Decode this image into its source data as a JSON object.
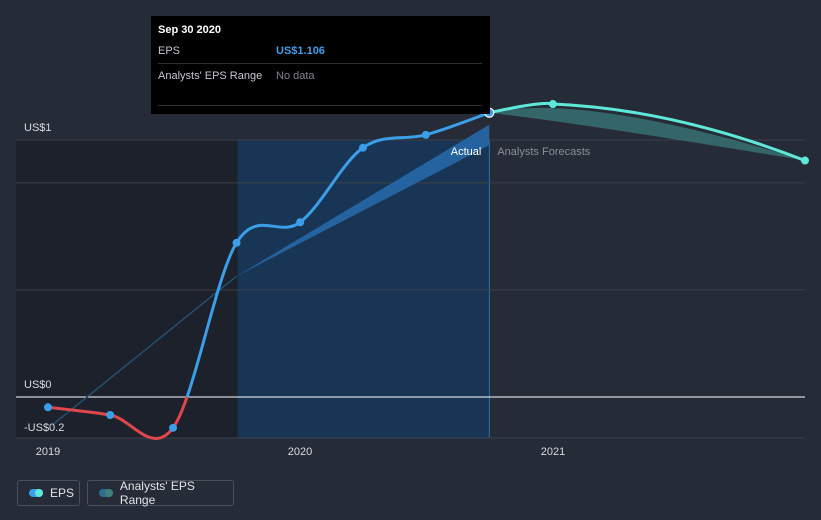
{
  "tooltip": {
    "date": "Sep 30 2020",
    "eps_label": "EPS",
    "eps_value": "US$1.106",
    "range_label": "Analysts' EPS Range",
    "range_value": "No data"
  },
  "legend": {
    "eps": "EPS",
    "range": "Analysts' EPS Range"
  },
  "colors": {
    "actual_positive": "#3b9ee8",
    "actual_negative": "#e0474c",
    "forecast": "#5ee8d9",
    "past_shade": "#1c212b",
    "actual_shade": "#18375a"
  },
  "chart_data": {
    "type": "line",
    "y_tick_labels": [
      "US$1",
      "US$0",
      "-US$0.2"
    ],
    "x_tick_labels": [
      "2019",
      "2020",
      "2021"
    ],
    "annotations": {
      "actual": "Actual",
      "forecast": "Analysts Forecasts"
    },
    "ylim": [
      -0.2,
      1.0
    ],
    "grid": true,
    "series": [
      {
        "name": "EPS",
        "kind": "actual",
        "points": [
          {
            "x": "2018-12-31",
            "y": -0.04
          },
          {
            "x": "2019-03-31",
            "y": -0.07
          },
          {
            "x": "2019-06-30",
            "y": -0.12
          },
          {
            "x": "2019-09-30",
            "y": 0.6
          },
          {
            "x": "2019-12-31",
            "y": 0.68
          },
          {
            "x": "2020-03-31",
            "y": 0.97
          },
          {
            "x": "2020-06-30",
            "y": 1.02
          },
          {
            "x": "2020-09-30",
            "y": 1.106
          }
        ]
      },
      {
        "name": "EPS",
        "kind": "forecast",
        "points": [
          {
            "x": "2020-09-30",
            "y": 1.106
          },
          {
            "x": "2020-12-31",
            "y": 1.14
          },
          {
            "x": "2021-12-31",
            "y": 0.92
          }
        ]
      }
    ],
    "range_bands": [
      {
        "kind": "past_estimate",
        "points": [
          {
            "x": "2019-09-30",
            "lo": 0.47,
            "hi": 0.47
          },
          {
            "x": "2020-09-30",
            "lo": 0.98,
            "hi": 1.06
          }
        ]
      },
      {
        "kind": "forecast",
        "points": [
          {
            "x": "2020-09-30",
            "lo": 1.106,
            "hi": 1.106
          },
          {
            "x": "2020-12-31",
            "lo": 1.08,
            "hi": 1.18
          },
          {
            "x": "2021-12-31",
            "lo": 0.92,
            "hi": 0.92
          }
        ]
      }
    ]
  }
}
